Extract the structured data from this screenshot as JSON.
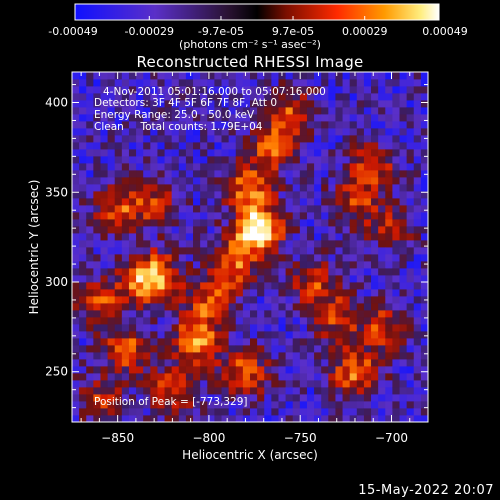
{
  "colorbar": {
    "tick_labels": [
      "-0.00049",
      "-0.00029",
      "-9.7e-05",
      "9.7e-05",
      "0.00029",
      "0.00049"
    ],
    "tick_values": [
      -0.00049,
      -0.00029,
      -9.7e-05,
      9.7e-05,
      0.00029,
      0.00049
    ],
    "range": [
      -0.00049,
      0.00049
    ],
    "units_label": "(photons cm⁻² s⁻¹ asec⁻²)"
  },
  "chart_data": {
    "type": "heatmap",
    "title": "Reconstructed RHESSI Image",
    "xlabel": "Heliocentric X (arcsec)",
    "ylabel": "Heliocentric Y (arcsec)",
    "xlim": [
      -875,
      -680
    ],
    "ylim": [
      222,
      417
    ],
    "x_ticks": [
      -850,
      -800,
      -750,
      -700
    ],
    "x_tick_labels": [
      "−850",
      "−800",
      "−750",
      "−700"
    ],
    "y_ticks": [
      250,
      300,
      350,
      400
    ],
    "y_tick_labels": [
      "250",
      "300",
      "350",
      "400"
    ],
    "colormap": [
      "#1414ff",
      "#5a2fc8",
      "#3a1d66",
      "#6e1212",
      "#d61a00",
      "#ff7a00",
      "#ffe066",
      "#ffffff"
    ],
    "emission_peaks": [
      {
        "x": -773,
        "y": 329,
        "intensity": 1.0
      },
      {
        "x": -778,
        "y": 352,
        "intensity": 0.6
      },
      {
        "x": -765,
        "y": 375,
        "intensity": 0.55
      },
      {
        "x": -755,
        "y": 395,
        "intensity": 0.45
      },
      {
        "x": -787,
        "y": 310,
        "intensity": 0.55
      },
      {
        "x": -800,
        "y": 290,
        "intensity": 0.5
      },
      {
        "x": -806,
        "y": 268,
        "intensity": 0.7
      },
      {
        "x": -780,
        "y": 250,
        "intensity": 0.55
      },
      {
        "x": -820,
        "y": 240,
        "intensity": 0.5
      },
      {
        "x": -845,
        "y": 262,
        "intensity": 0.55
      },
      {
        "x": -860,
        "y": 290,
        "intensity": 0.45
      },
      {
        "x": -838,
        "y": 300,
        "intensity": 0.4
      },
      {
        "x": -829,
        "y": 304,
        "intensity": 0.65
      },
      {
        "x": -850,
        "y": 340,
        "intensity": 0.5
      },
      {
        "x": -830,
        "y": 345,
        "intensity": 0.4
      },
      {
        "x": -742,
        "y": 300,
        "intensity": 0.45
      },
      {
        "x": -730,
        "y": 280,
        "intensity": 0.45
      },
      {
        "x": -720,
        "y": 250,
        "intensity": 0.6
      },
      {
        "x": -705,
        "y": 275,
        "intensity": 0.45
      },
      {
        "x": -720,
        "y": 345,
        "intensity": 0.45
      },
      {
        "x": -710,
        "y": 365,
        "intensity": 0.45
      },
      {
        "x": -700,
        "y": 330,
        "intensity": 0.35
      },
      {
        "x": -860,
        "y": 235,
        "intensity": 0.4
      }
    ]
  },
  "annotations": {
    "time_range": "4-Nov-2011 05:01:16.000 to 05:07:16.000",
    "detectors": "Detectors: 3F 4F 5F 6F 7F 8F, Att 0",
    "energy_range": "Energy Range: 25.0 - 50.0 keV",
    "clean_counts": "Clean     Total counts: 1.79E+04",
    "peak_position": "Position of Peak = [-773,329]"
  },
  "footer": {
    "date": "15-May-2022 20:07"
  }
}
